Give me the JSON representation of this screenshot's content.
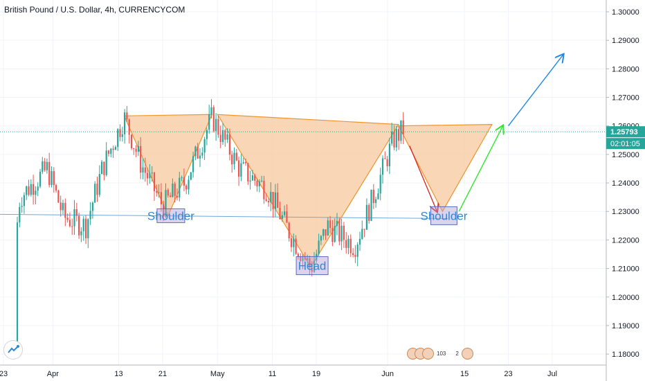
{
  "header": {
    "title": "British Pound / U.S. Dollar, 4h, CURRENCYCOM"
  },
  "price_axis": {
    "ticks": [
      "1.30000",
      "1.29000",
      "1.28000",
      "1.27000",
      "1.26000",
      "1.25000",
      "1.24000",
      "1.23000",
      "1.22000",
      "1.21000",
      "1.20000",
      "1.19000",
      "1.18000"
    ],
    "current_price": "1.25793",
    "countdown": "02:01:05",
    "price_label_color": "#26a69a"
  },
  "time_axis": {
    "ticks": [
      "23",
      "Apr",
      "13",
      "21",
      "May",
      "11",
      "19",
      "Jun",
      "15",
      "23",
      "Jul"
    ]
  },
  "annotations": {
    "left_shoulder": "Shoulder",
    "head": "Head",
    "right_shoulder": "Shoulder"
  },
  "events": {
    "count": "103",
    "second": "2"
  },
  "colors": {
    "bull": "#26a69a",
    "bear": "#ef5350",
    "pattern_fill": "#f7c99d",
    "pattern_stroke": "#f0932b",
    "neckline": "#6fa8dc",
    "arrow_down": "#d32f2f",
    "arrow_up_green": "#2ee82e",
    "arrow_up_blue": "#1e88e5",
    "label_box": "#b39ddb"
  },
  "chart_data": {
    "type": "candlestick",
    "symbol": "GBPUSD",
    "timeframe": "4h",
    "ylim": [
      1.175,
      1.305
    ],
    "price_path": [
      {
        "x": "Mar 23",
        "y": 1.18
      },
      {
        "x": "Mar 26",
        "y": 1.235
      },
      {
        "x": "Mar 31",
        "y": 1.245
      },
      {
        "x": "Apr 3",
        "y": 1.228
      },
      {
        "x": "Apr 7",
        "y": 1.225
      },
      {
        "x": "Apr 10",
        "y": 1.245
      },
      {
        "x": "Apr 14",
        "y": 1.263
      },
      {
        "x": "Apr 17",
        "y": 1.247
      },
      {
        "x": "Apr 21",
        "y": 1.232
      },
      {
        "x": "Apr 25",
        "y": 1.24
      },
      {
        "x": "Apr 30",
        "y": 1.263
      },
      {
        "x": "May 5",
        "y": 1.245
      },
      {
        "x": "May 10",
        "y": 1.238
      },
      {
        "x": "May 14",
        "y": 1.223
      },
      {
        "x": "May 18",
        "y": 1.21
      },
      {
        "x": "May 21",
        "y": 1.225
      },
      {
        "x": "May 26",
        "y": 1.218
      },
      {
        "x": "May 29",
        "y": 1.233
      },
      {
        "x": "Jun 2",
        "y": 1.255
      },
      {
        "x": "Jun 4",
        "y": 1.259
      }
    ],
    "current_price": 1.25793,
    "pattern": {
      "name": "inverse head and shoulders",
      "left_shoulder": {
        "top_left": 1.2635,
        "bottom": 1.2285,
        "top_right": 1.264
      },
      "head": {
        "top_left": 1.264,
        "bottom": 1.2105,
        "top_right": 1.2605
      },
      "right_shoulder": {
        "top_left": 1.26,
        "bottom": 1.23,
        "top_right": 1.2605
      },
      "neckline": [
        1.229,
        1.2275
      ]
    },
    "projection": {
      "down_to": 1.23,
      "up_to": 1.26,
      "target": 1.285
    }
  }
}
